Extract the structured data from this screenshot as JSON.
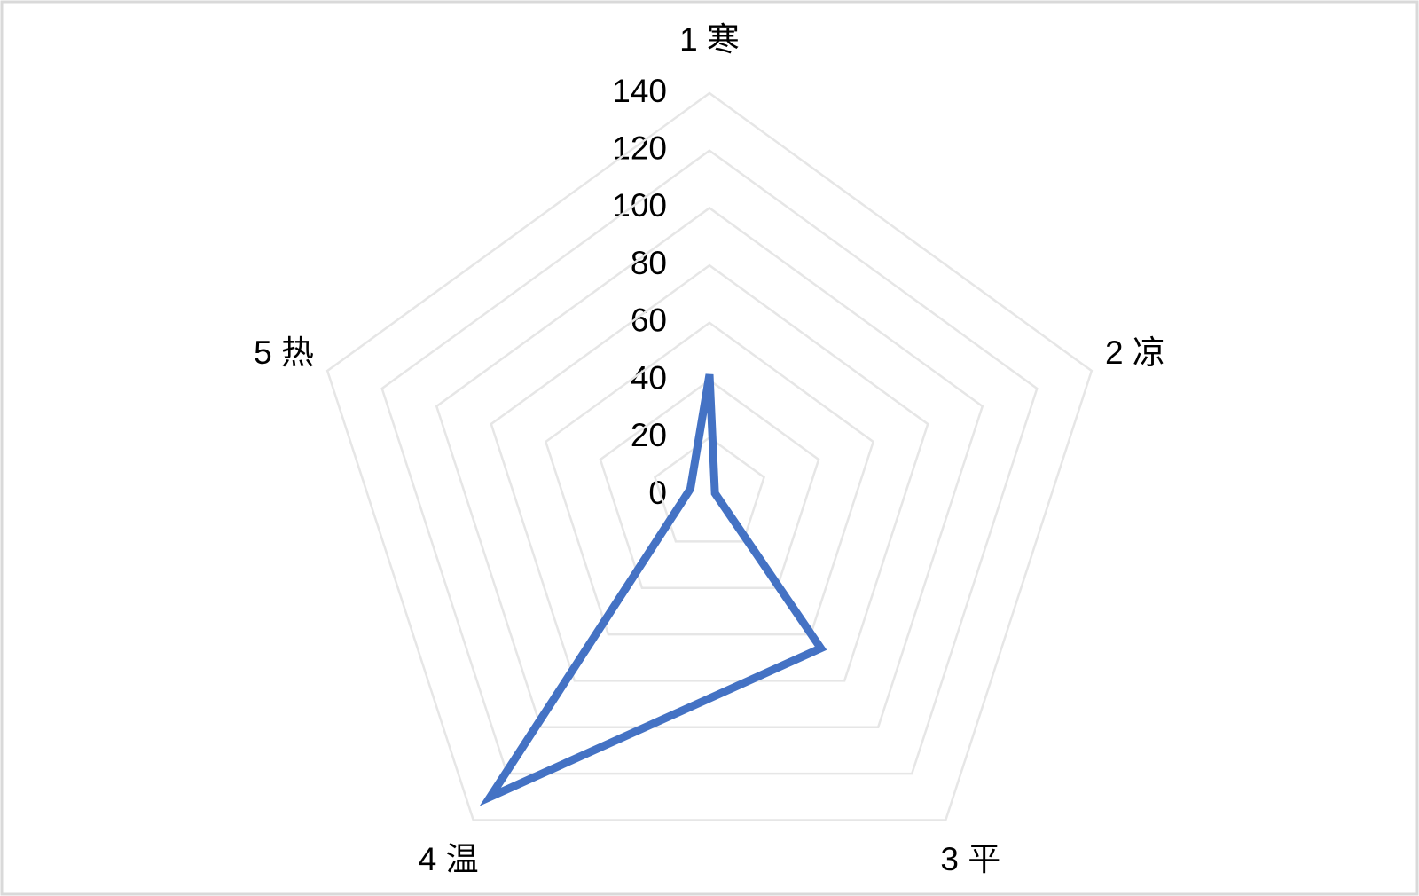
{
  "chart_data": {
    "type": "radar",
    "categories": [
      "1 寒",
      "2 凉",
      "3 平",
      "4 温",
      "5 热"
    ],
    "values": [
      42,
      2,
      66,
      130,
      7
    ],
    "color": "#4472c4",
    "ylim": [
      0,
      140
    ],
    "yticks": [
      0,
      20,
      40,
      60,
      80,
      100,
      120,
      140
    ],
    "grid": true
  }
}
